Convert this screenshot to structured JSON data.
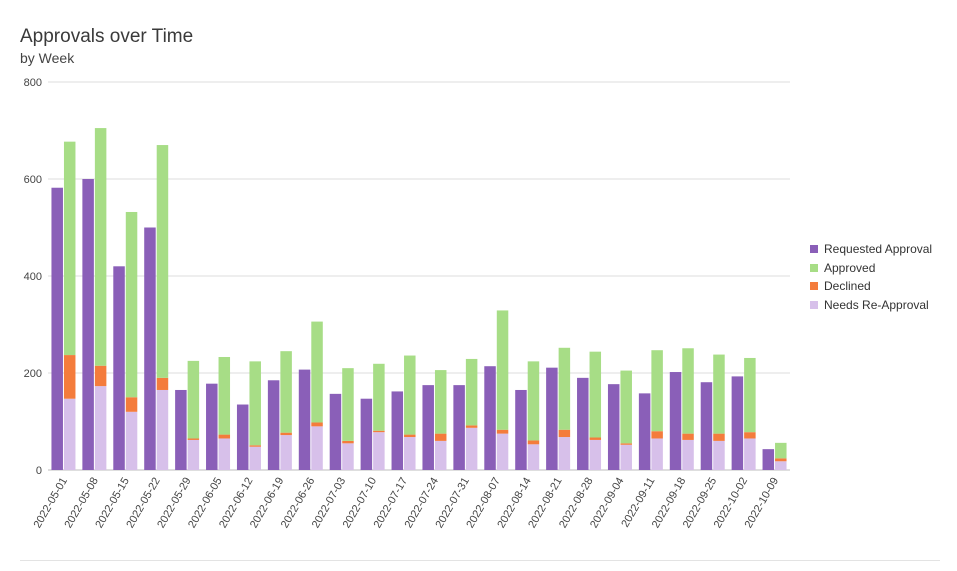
{
  "chart_data": {
    "type": "bar",
    "title": "Approvals over Time",
    "subtitle": "by Week",
    "xlabel": "",
    "ylabel": "",
    "ylim": [
      0,
      800
    ],
    "yticks": [
      0,
      200,
      400,
      600,
      800
    ],
    "grid": true,
    "legend_position": "right",
    "categories": [
      "2022-05-01",
      "2022-05-08",
      "2022-05-15",
      "2022-05-22",
      "2022-05-29",
      "2022-06-05",
      "2022-06-12",
      "2022-06-19",
      "2022-06-26",
      "2022-07-03",
      "2022-07-10",
      "2022-07-17",
      "2022-07-24",
      "2022-07-31",
      "2022-08-07",
      "2022-08-14",
      "2022-08-21",
      "2022-08-28",
      "2022-09-04",
      "2022-09-11",
      "2022-09-18",
      "2022-09-25",
      "2022-10-02",
      "2022-10-09"
    ],
    "series": [
      {
        "name": "Requested Approval",
        "color": "#8a5fb8",
        "stack": "requested",
        "values": [
          582,
          600,
          420,
          500,
          165,
          178,
          135,
          185,
          207,
          157,
          147,
          162,
          175,
          175,
          214,
          165,
          211,
          190,
          177,
          158,
          202,
          181,
          193,
          43
        ]
      },
      {
        "name": "Needs Re-Approval",
        "color": "#d7c0ea",
        "stack": "outcome",
        "values": [
          147,
          173,
          120,
          165,
          62,
          65,
          48,
          72,
          90,
          55,
          78,
          68,
          60,
          87,
          75,
          53,
          68,
          62,
          52,
          65,
          62,
          60,
          65,
          18
        ]
      },
      {
        "name": "Declined",
        "color": "#f47c3c",
        "stack": "outcome",
        "values": [
          90,
          42,
          30,
          25,
          3,
          8,
          3,
          5,
          8,
          5,
          3,
          5,
          15,
          5,
          8,
          8,
          15,
          5,
          3,
          15,
          13,
          15,
          13,
          6
        ]
      },
      {
        "name": "Approved",
        "color": "#a7dd86",
        "stack": "outcome",
        "values": [
          440,
          490,
          382,
          480,
          160,
          160,
          173,
          168,
          208,
          150,
          138,
          163,
          131,
          137,
          246,
          163,
          169,
          177,
          150,
          167,
          176,
          163,
          153,
          32
        ]
      }
    ],
    "legend": [
      {
        "name": "Requested Approval",
        "color": "#8a5fb8"
      },
      {
        "name": "Approved",
        "color": "#a7dd86"
      },
      {
        "name": "Declined",
        "color": "#f47c3c"
      },
      {
        "name": "Needs Re-Approval",
        "color": "#d7c0ea"
      }
    ]
  }
}
